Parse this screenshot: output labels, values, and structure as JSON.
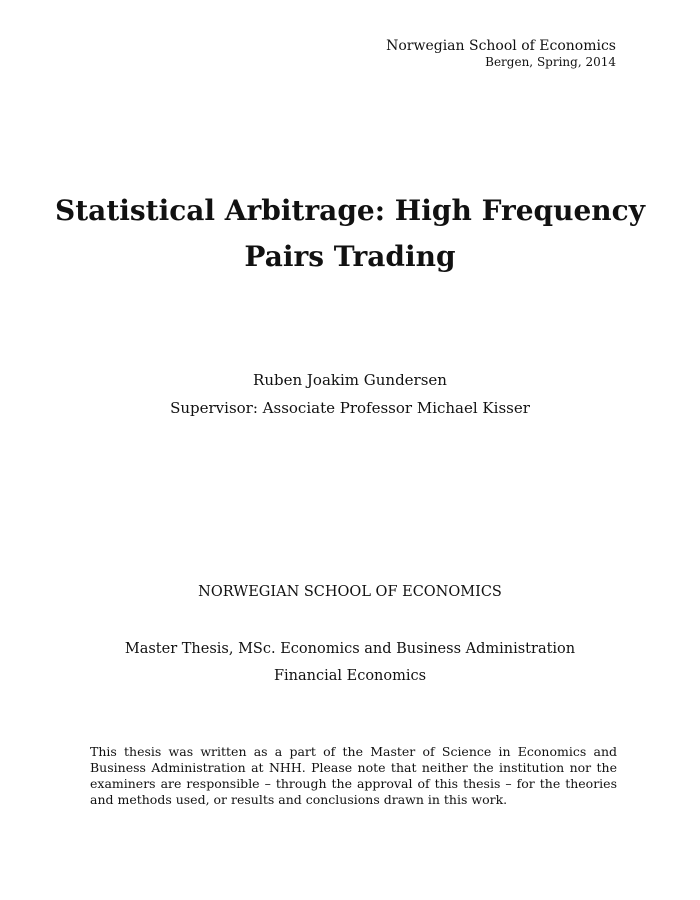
{
  "header": {
    "institution": "Norwegian School of Economics",
    "place_date": "Bergen, Spring, 2014"
  },
  "title": {
    "line1": "Statistical Arbitrage: High Frequency",
    "line2": "Pairs Trading"
  },
  "author": {
    "name": "Ruben Joakim Gundersen",
    "supervisor": "Supervisor: Associate Professor Michael Kisser"
  },
  "school": {
    "name": "NORWEGIAN SCHOOL OF ECONOMICS"
  },
  "program": {
    "degree": "Master Thesis, MSc. Economics and Business Administration",
    "major": "Financial Economics"
  },
  "disclaimer": {
    "text": "This thesis was written as a part of the Master of Science in Economics and Business Administration at NHH. Please note that neither the institution nor the examiners are responsible – through the approval of this thesis – for the theories and methods used, or results and conclusions drawn in this work."
  }
}
